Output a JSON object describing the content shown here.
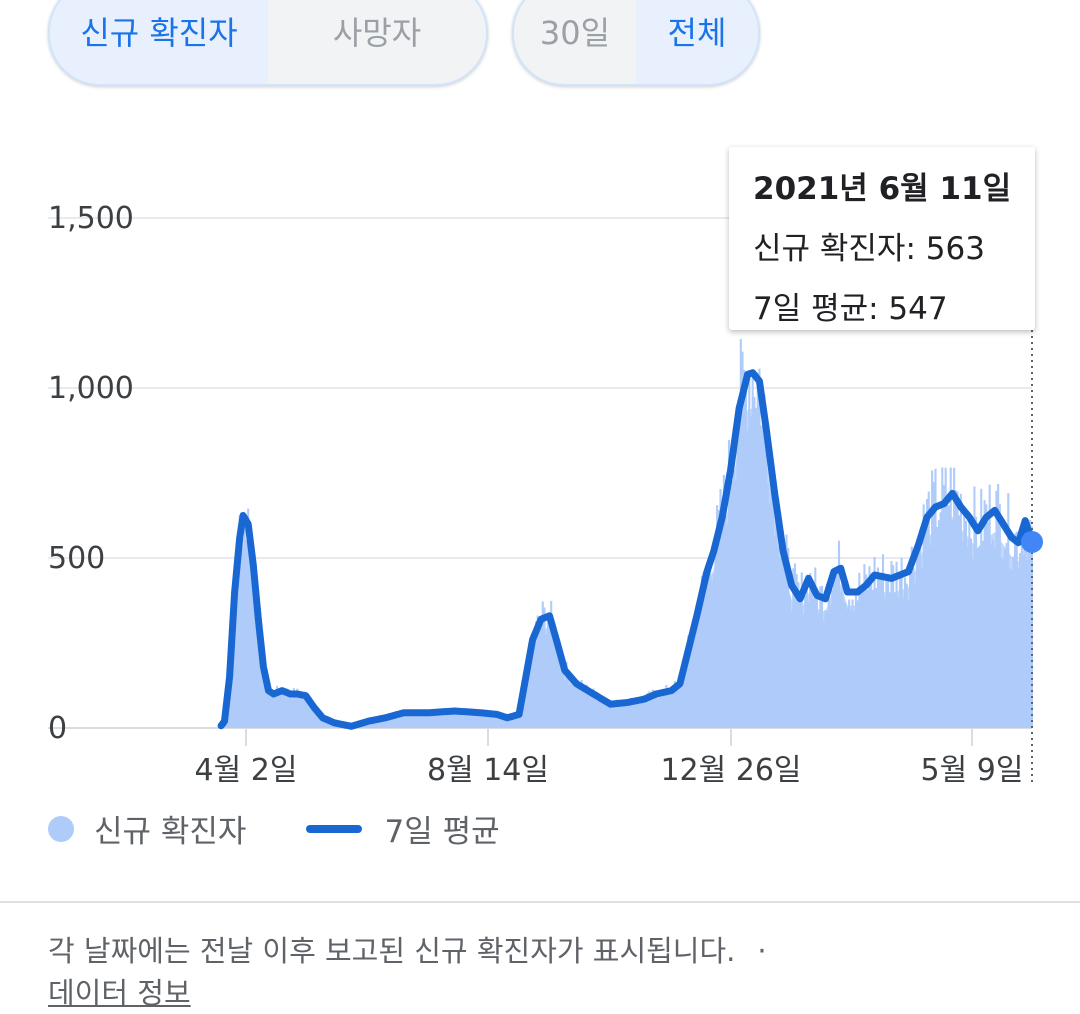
{
  "metric_toggle": {
    "options": [
      "신규 확진자",
      "사망자"
    ],
    "selected": "신규 확진자"
  },
  "range_toggle": {
    "options": [
      "30일",
      "전체"
    ],
    "selected": "전체"
  },
  "tooltip": {
    "date": "2021년 6월 11일",
    "new_cases": "신규 확진자: 563",
    "avg7": "7일 평균: 547"
  },
  "legend": {
    "bars": "신규 확진자",
    "line": "7일 평균"
  },
  "footnote": {
    "text": "각 날짜에는 전날 이후 보고된 신규 확진자가 표시됩니다.",
    "separator": "·",
    "link": "데이터 정보"
  },
  "colors": {
    "bars": "#aecbfa",
    "line": "#1967d2",
    "marker": "#4285f4"
  },
  "chart_data": {
    "type": "bar",
    "series": [
      {
        "name": "신규 확진자",
        "type": "bar"
      },
      {
        "name": "7일 평균",
        "type": "line"
      }
    ],
    "x_start": "2020-01-20",
    "x_end": "2021-06-11",
    "xtick_labels": [
      "4월 2일",
      "8월 14일",
      "12월 26일",
      "5월 9일"
    ],
    "ytick_labels": [
      "0",
      "500",
      "1,000",
      "1,500"
    ],
    "ylim": [
      0,
      1500
    ],
    "grid": true,
    "legend_position": "bottom-left",
    "avg7_points": [
      [
        "2020-01-20",
        0
      ],
      [
        "2020-02-17",
        0
      ],
      [
        "2020-02-20",
        20
      ],
      [
        "2020-02-23",
        150
      ],
      [
        "2020-02-26",
        400
      ],
      [
        "2020-02-29",
        560
      ],
      [
        "2020-03-02",
        625
      ],
      [
        "2020-03-05",
        600
      ],
      [
        "2020-03-08",
        480
      ],
      [
        "2020-03-11",
        320
      ],
      [
        "2020-03-14",
        180
      ],
      [
        "2020-03-17",
        110
      ],
      [
        "2020-03-20",
        100
      ],
      [
        "2020-03-25",
        110
      ],
      [
        "2020-03-30",
        100
      ],
      [
        "2020-04-03",
        100
      ],
      [
        "2020-04-08",
        95
      ],
      [
        "2020-04-13",
        60
      ],
      [
        "2020-04-18",
        30
      ],
      [
        "2020-04-25",
        15
      ],
      [
        "2020-05-05",
        5
      ],
      [
        "2020-05-15",
        20
      ],
      [
        "2020-05-25",
        30
      ],
      [
        "2020-06-05",
        45
      ],
      [
        "2020-06-20",
        45
      ],
      [
        "2020-07-05",
        50
      ],
      [
        "2020-07-20",
        45
      ],
      [
        "2020-07-30",
        40
      ],
      [
        "2020-08-05",
        30
      ],
      [
        "2020-08-12",
        40
      ],
      [
        "2020-08-16",
        150
      ],
      [
        "2020-08-20",
        260
      ],
      [
        "2020-08-25",
        320
      ],
      [
        "2020-08-30",
        330
      ],
      [
        "2020-09-03",
        260
      ],
      [
        "2020-09-08",
        170
      ],
      [
        "2020-09-15",
        130
      ],
      [
        "2020-09-25",
        100
      ],
      [
        "2020-10-05",
        70
      ],
      [
        "2020-10-15",
        75
      ],
      [
        "2020-10-25",
        85
      ],
      [
        "2020-11-01",
        100
      ],
      [
        "2020-11-10",
        110
      ],
      [
        "2020-11-15",
        130
      ],
      [
        "2020-11-20",
        230
      ],
      [
        "2020-11-25",
        330
      ],
      [
        "2020-12-01",
        460
      ],
      [
        "2020-12-05",
        520
      ],
      [
        "2020-12-10",
        620
      ],
      [
        "2020-12-15",
        760
      ],
      [
        "2020-12-20",
        940
      ],
      [
        "2020-12-25",
        1040
      ],
      [
        "2020-12-28",
        1045
      ],
      [
        "2021-01-01",
        1020
      ],
      [
        "2021-01-05",
        880
      ],
      [
        "2021-01-10",
        690
      ],
      [
        "2021-01-15",
        520
      ],
      [
        "2021-01-20",
        420
      ],
      [
        "2021-01-25",
        380
      ],
      [
        "2021-01-30",
        440
      ],
      [
        "2021-02-04",
        390
      ],
      [
        "2021-02-09",
        380
      ],
      [
        "2021-02-14",
        460
      ],
      [
        "2021-02-18",
        470
      ],
      [
        "2021-02-22",
        400
      ],
      [
        "2021-02-28",
        400
      ],
      [
        "2021-03-05",
        420
      ],
      [
        "2021-03-10",
        450
      ],
      [
        "2021-03-20",
        440
      ],
      [
        "2021-03-30",
        460
      ],
      [
        "2021-04-05",
        540
      ],
      [
        "2021-04-10",
        620
      ],
      [
        "2021-04-15",
        650
      ],
      [
        "2021-04-20",
        660
      ],
      [
        "2021-04-25",
        690
      ],
      [
        "2021-04-30",
        650
      ],
      [
        "2021-05-05",
        620
      ],
      [
        "2021-05-10",
        580
      ],
      [
        "2021-05-15",
        620
      ],
      [
        "2021-05-20",
        640
      ],
      [
        "2021-05-25",
        600
      ],
      [
        "2021-05-30",
        560
      ],
      [
        "2021-06-03",
        545
      ],
      [
        "2021-06-07",
        610
      ],
      [
        "2021-06-11",
        547
      ]
    ],
    "highlighted": {
      "date": "2021-06-11",
      "new_cases": 563,
      "avg7": 547
    }
  }
}
